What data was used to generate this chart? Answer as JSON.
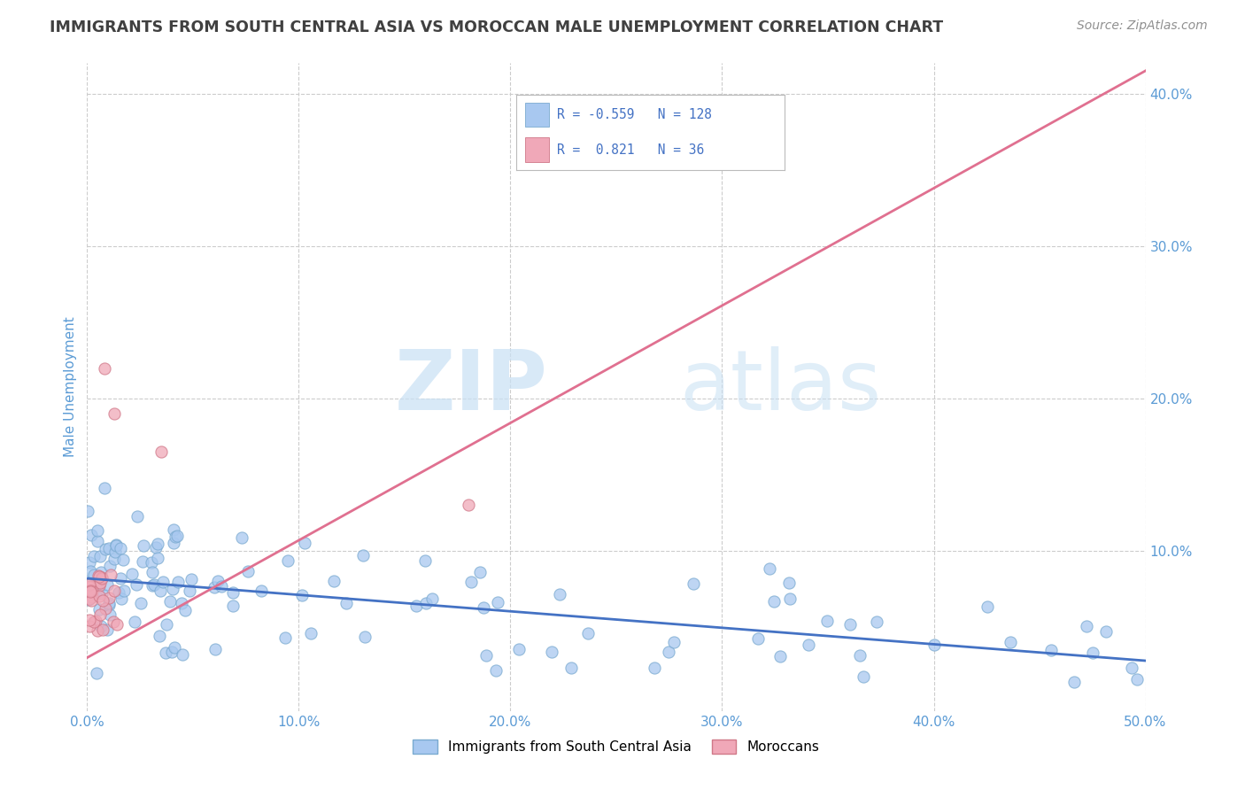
{
  "title": "IMMIGRANTS FROM SOUTH CENTRAL ASIA VS MOROCCAN MALE UNEMPLOYMENT CORRELATION CHART",
  "source": "Source: ZipAtlas.com",
  "ylabel": "Male Unemployment",
  "xlim": [
    0.0,
    0.5
  ],
  "ylim": [
    -0.005,
    0.42
  ],
  "xtick_vals": [
    0.0,
    0.1,
    0.2,
    0.3,
    0.4,
    0.5
  ],
  "xtick_labels": [
    "0.0%",
    "10.0%",
    "20.0%",
    "30.0%",
    "40.0%",
    "50.0%"
  ],
  "ytick_vals": [
    0.1,
    0.2,
    0.3,
    0.4
  ],
  "ytick_labels": [
    "10.0%",
    "20.0%",
    "30.0%",
    "40.0%"
  ],
  "legend_labels": [
    "Immigrants from South Central Asia",
    "Moroccans"
  ],
  "blue_color": "#a8c8f0",
  "blue_edge_color": "#7aaad0",
  "pink_color": "#f0a8b8",
  "pink_edge_color": "#d07888",
  "blue_line_color": "#4472c4",
  "pink_line_color": "#e07090",
  "blue_r": -0.559,
  "blue_n": 128,
  "pink_r": 0.821,
  "pink_n": 36,
  "watermark_zip": "ZIP",
  "watermark_atlas": "atlas",
  "bg_color": "#ffffff",
  "grid_color": "#cccccc",
  "title_color": "#404040",
  "source_color": "#909090",
  "tick_color": "#5b9bd5",
  "ylabel_color": "#5b9bd5",
  "legend_r_color": "#4472c4",
  "blue_line_x": [
    0.0,
    0.5
  ],
  "blue_line_y": [
    0.082,
    0.028
  ],
  "pink_line_x": [
    0.0,
    0.5
  ],
  "pink_line_y": [
    0.03,
    0.415
  ]
}
